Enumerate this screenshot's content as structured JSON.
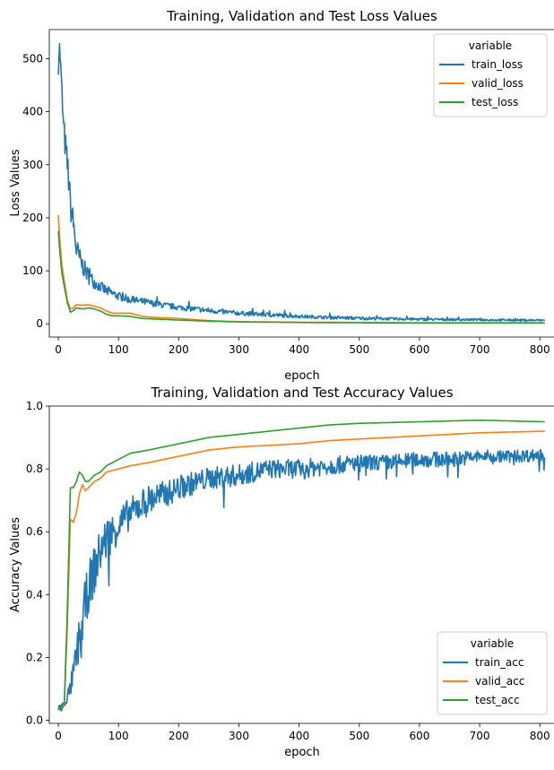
{
  "chart_data": [
    {
      "type": "line",
      "title": "Training, Validation and Test Loss Values",
      "xlabel": "epoch",
      "ylabel": "Loss Values",
      "xlim": [
        -15,
        825
      ],
      "ylim": [
        -25,
        555
      ],
      "xticks": [
        0,
        100,
        200,
        300,
        400,
        500,
        600,
        700,
        800
      ],
      "yticks": [
        0,
        100,
        200,
        300,
        400,
        500
      ],
      "grid": false,
      "legend": {
        "title": "variable",
        "placement": "top-right"
      },
      "series": [
        {
          "name": "train_loss",
          "color": "#1f77b4",
          "noisy": true,
          "x": [
            0,
            2,
            5,
            8,
            12,
            16,
            20,
            25,
            30,
            35,
            40,
            50,
            60,
            70,
            80,
            100,
            120,
            140,
            160,
            180,
            200,
            250,
            300,
            350,
            400,
            450,
            500,
            550,
            600,
            650,
            700,
            750,
            808
          ],
          "y": [
            470,
            525,
            460,
            380,
            330,
            290,
            225,
            190,
            140,
            125,
            110,
            90,
            78,
            70,
            62,
            52,
            45,
            42,
            38,
            34,
            31,
            25,
            20,
            17,
            14,
            12,
            10.5,
            9.5,
            8.5,
            8,
            7.5,
            7,
            6.5
          ],
          "spread": [
            0,
            8,
            20,
            25,
            30,
            30,
            30,
            25,
            25,
            20,
            18,
            15,
            12,
            10,
            10,
            8,
            7,
            7,
            6,
            6,
            5,
            5,
            4,
            4,
            3,
            3,
            3,
            2.5,
            2.5,
            2,
            2,
            2,
            2
          ]
        },
        {
          "name": "valid_loss",
          "color": "#ff7f0e",
          "x": [
            0,
            3,
            6,
            10,
            15,
            20,
            25,
            30,
            40,
            50,
            60,
            70,
            80,
            90,
            100,
            120,
            140,
            160,
            200,
            250,
            300,
            400,
            500,
            600,
            700,
            808
          ],
          "y": [
            205,
            150,
            110,
            80,
            45,
            28,
            30,
            36,
            35,
            36,
            33,
            30,
            24,
            20,
            20,
            20,
            14,
            12,
            10,
            6,
            4,
            3,
            2.5,
            2,
            2,
            2
          ]
        },
        {
          "name": "test_loss",
          "color": "#2ca02c",
          "x": [
            0,
            3,
            6,
            10,
            15,
            20,
            25,
            30,
            40,
            50,
            60,
            70,
            80,
            90,
            100,
            120,
            140,
            160,
            200,
            250,
            300,
            400,
            500,
            600,
            700,
            808
          ],
          "y": [
            175,
            130,
            95,
            70,
            40,
            22,
            25,
            30,
            28,
            30,
            28,
            24,
            18,
            15,
            15,
            14,
            10,
            9,
            7,
            5,
            3.5,
            2.5,
            2,
            1.5,
            1.5,
            1.5
          ]
        }
      ]
    },
    {
      "type": "line",
      "title": "Training, Validation and Test Accuracy Values",
      "xlabel": "epoch",
      "ylabel": "Accuracy Values",
      "xlim": [
        -15,
        825
      ],
      "ylim": [
        -0.01,
        1.0
      ],
      "xticks": [
        0,
        100,
        200,
        300,
        400,
        500,
        600,
        700,
        800
      ],
      "yticks": [
        0.0,
        0.2,
        0.4,
        0.6,
        0.8,
        1.0
      ],
      "grid": false,
      "legend": {
        "title": "variable",
        "placement": "bottom-right"
      },
      "series": [
        {
          "name": "train_acc",
          "color": "#1f77b4",
          "noisy": true,
          "x": [
            0,
            10,
            20,
            30,
            40,
            50,
            60,
            70,
            80,
            90,
            100,
            120,
            140,
            160,
            180,
            200,
            250,
            300,
            350,
            400,
            450,
            500,
            550,
            600,
            650,
            700,
            750,
            808
          ],
          "y": [
            0.04,
            0.05,
            0.1,
            0.2,
            0.32,
            0.42,
            0.48,
            0.54,
            0.58,
            0.6,
            0.62,
            0.66,
            0.69,
            0.71,
            0.72,
            0.74,
            0.77,
            0.78,
            0.8,
            0.8,
            0.81,
            0.82,
            0.82,
            0.83,
            0.83,
            0.84,
            0.84,
            0.845
          ],
          "spread": [
            0.01,
            0.01,
            0.03,
            0.06,
            0.08,
            0.08,
            0.08,
            0.07,
            0.07,
            0.06,
            0.06,
            0.05,
            0.05,
            0.05,
            0.04,
            0.04,
            0.035,
            0.035,
            0.03,
            0.03,
            0.03,
            0.025,
            0.025,
            0.025,
            0.025,
            0.02,
            0.02,
            0.02
          ]
        },
        {
          "name": "valid_acc",
          "color": "#ff7f0e",
          "x": [
            0,
            5,
            10,
            15,
            20,
            25,
            30,
            35,
            40,
            45,
            50,
            60,
            70,
            80,
            100,
            120,
            150,
            200,
            250,
            300,
            350,
            400,
            450,
            500,
            600,
            700,
            808
          ],
          "y": [
            0.04,
            0.03,
            0.05,
            0.3,
            0.64,
            0.63,
            0.66,
            0.72,
            0.75,
            0.73,
            0.74,
            0.76,
            0.77,
            0.79,
            0.8,
            0.81,
            0.82,
            0.84,
            0.86,
            0.87,
            0.875,
            0.88,
            0.89,
            0.895,
            0.905,
            0.915,
            0.92
          ]
        },
        {
          "name": "test_acc",
          "color": "#2ca02c",
          "x": [
            0,
            5,
            10,
            15,
            20,
            25,
            30,
            35,
            40,
            45,
            50,
            60,
            70,
            80,
            100,
            120,
            150,
            200,
            250,
            300,
            350,
            400,
            450,
            500,
            600,
            700,
            808
          ],
          "y": [
            0.04,
            0.03,
            0.06,
            0.35,
            0.74,
            0.74,
            0.76,
            0.79,
            0.78,
            0.76,
            0.76,
            0.78,
            0.79,
            0.81,
            0.83,
            0.85,
            0.86,
            0.88,
            0.9,
            0.91,
            0.92,
            0.93,
            0.94,
            0.945,
            0.95,
            0.955,
            0.95
          ]
        }
      ]
    }
  ]
}
